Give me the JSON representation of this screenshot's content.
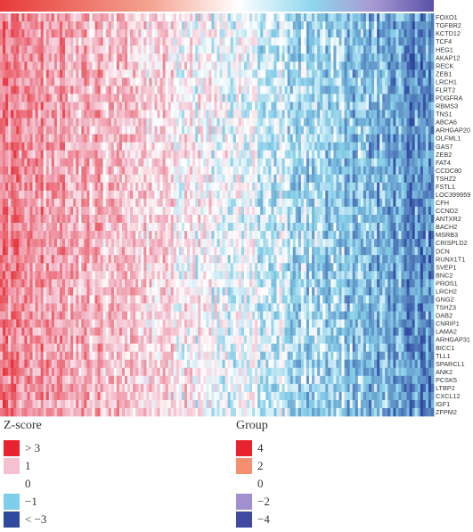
{
  "chart_data": {
    "type": "heatmap",
    "annotation_row": {
      "palette": [
        "#e83a3a",
        "#f5a593",
        "#ffffff",
        "#8fd6ee",
        "#a79ad2",
        "#5a51a8"
      ]
    },
    "genes": [
      "FOXO1",
      "TGFBR2",
      "KCTD12",
      "TCF4",
      "HEG1",
      "AKAP12",
      "RECK",
      "ZEB1",
      "LRCH1",
      "FLRT2",
      "PDGFRA",
      "RBMS3",
      "TNS1",
      "ABCA6",
      "ARHGAP20",
      "OLFML1",
      "GAS7",
      "ZEB2",
      "FAT4",
      "CCDC80",
      "TSHZ2",
      "FSTL1",
      "LOC399959",
      "CFH",
      "CCND2",
      "ANTXR2",
      "BACH2",
      "MSRB3",
      "CRISPLD2",
      "DCN",
      "RUNX1T1",
      "SVEP1",
      "BNC2",
      "PROS1",
      "LRCH2",
      "GNG2",
      "TSHZ3",
      "DAB2",
      "CNRIP1",
      "LAMA2",
      "ARHGAP31",
      "BICC1",
      "TLL1",
      "SPARCL1",
      "ANK2",
      "PCSK5",
      "LTBP2",
      "CXCL12",
      "IGF1",
      "ZFPM2"
    ],
    "n_samples": 160,
    "color_scale": {
      "high": "#e62b33",
      "mid_high": "#f2bccb",
      "zero": "#ffffff",
      "mid_low": "#87cfe8",
      "low": "#2a3f9b"
    },
    "trend": "left samples high (red), right samples low (blue)"
  },
  "legend_zscore": {
    "title": "Z-score",
    "items": [
      {
        "label": "> 3",
        "color": "#e8232f"
      },
      {
        "label": "1",
        "color": "#f5c0d0"
      },
      {
        "label": "0",
        "color": "#ffffff"
      },
      {
        "label": "−1",
        "color": "#7ecdea"
      },
      {
        "label": "< −3",
        "color": "#2f4a9c"
      }
    ]
  },
  "legend_group": {
    "title": "Group",
    "items": [
      {
        "label": "4",
        "color": "#e8232f"
      },
      {
        "label": "2",
        "color": "#f4906f"
      },
      {
        "label": "0",
        "color": "#ffffff"
      },
      {
        "label": "−2",
        "color": "#a18fce"
      },
      {
        "label": "−4",
        "color": "#3f4aa0"
      }
    ]
  }
}
